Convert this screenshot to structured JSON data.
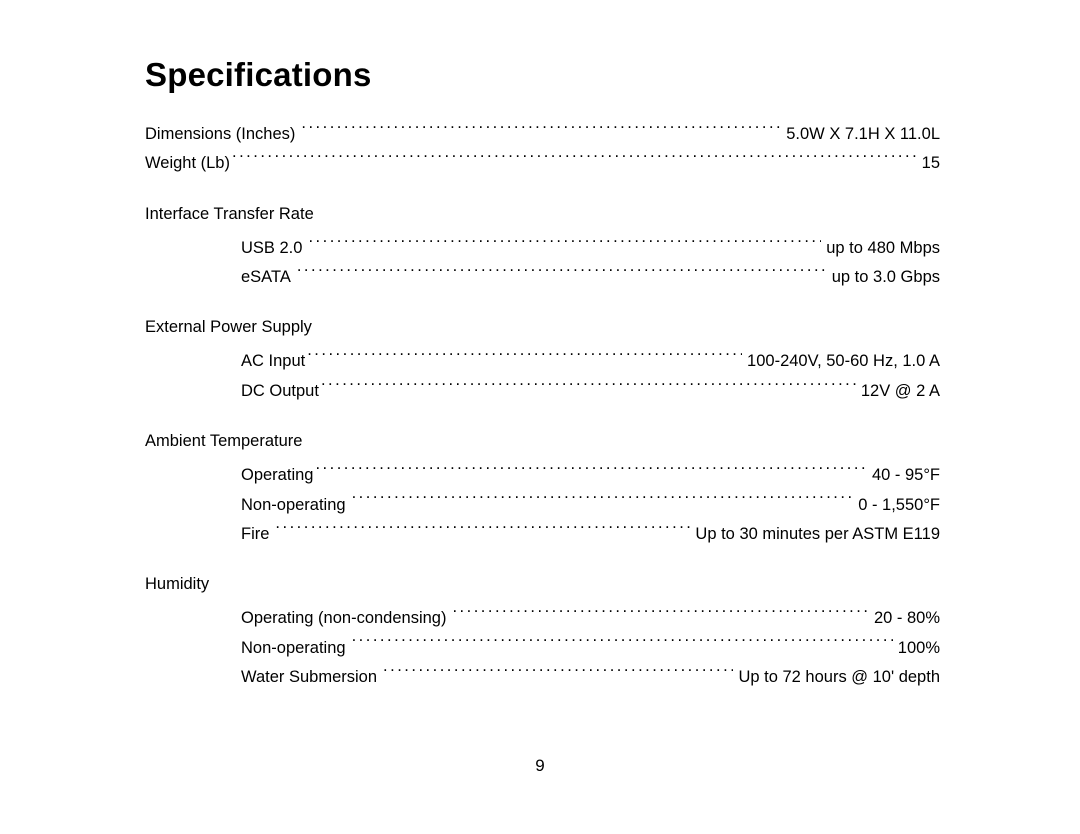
{
  "title": "Specifications",
  "page_number": "9",
  "top": {
    "dimensions": {
      "label": "Dimensions (Inches)",
      "value": "5.0W X 7.1H X 11.0L"
    },
    "weight": {
      "label": "Weight (Lb)",
      "value": "15"
    }
  },
  "interface": {
    "heading": "Interface Transfer Rate",
    "usb": {
      "label": "USB 2.0",
      "value": "up to 480 Mbps"
    },
    "esata": {
      "label": "eSATA",
      "value": "up to 3.0 Gbps"
    }
  },
  "power": {
    "heading": "External Power Supply",
    "ac": {
      "label": "AC Input",
      "value": "100-240V, 50-60 Hz, 1.0 A"
    },
    "dc": {
      "label": "DC Output",
      "value": "12V @ 2 A"
    }
  },
  "temperature": {
    "heading": "Ambient Temperature",
    "operating": {
      "label": "Operating",
      "value": "40 - 95°F"
    },
    "non_operating": {
      "label": "Non-operating",
      "value": "0 - 1,550°F"
    },
    "fire": {
      "label": "Fire",
      "value": "Up to 30 minutes per ASTM E119"
    }
  },
  "humidity": {
    "heading": "Humidity",
    "operating": {
      "label": "Operating (non-condensing)",
      "value": "20 - 80%"
    },
    "non_operating": {
      "label": "Non-operating",
      "value": "100%"
    },
    "water": {
      "label": "Water Submersion",
      "value": "Up to 72 hours @ 10' depth"
    }
  }
}
